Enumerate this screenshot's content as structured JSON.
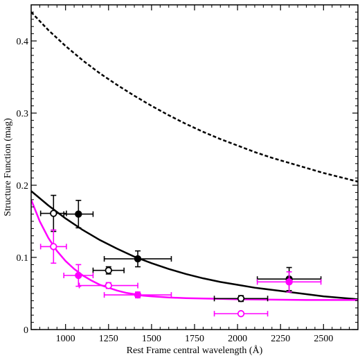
{
  "chart_data": {
    "type": "scatter",
    "title": "",
    "xlabel": "Rest Frame central wavelength (Å)",
    "ylabel": "Structure Function (mag)",
    "xlim": [
      800,
      2700
    ],
    "ylim": [
      0,
      0.45
    ],
    "x_ticks": [
      1000,
      1250,
      1500,
      1750,
      2000,
      2250,
      2500
    ],
    "y_ticks": [
      0,
      0.1,
      0.2,
      0.3,
      0.4
    ],
    "grid": false,
    "legend": "none",
    "series": [
      {
        "kind": "points",
        "color": "#000000",
        "marker": "filled-circle",
        "points": [
          {
            "x": 1075,
            "y": 0.16,
            "xerr": 85,
            "yerr": 0.019
          },
          {
            "x": 1420,
            "y": 0.098,
            "xerr": 195,
            "yerr": 0.011
          },
          {
            "x": 2300,
            "y": 0.07,
            "xerr": 185,
            "yerr": 0.016
          }
        ]
      },
      {
        "kind": "points",
        "color": "#000000",
        "marker": "open-circle",
        "points": [
          {
            "x": 930,
            "y": 0.161,
            "xerr": 75,
            "yerr": 0.025
          },
          {
            "x": 1250,
            "y": 0.082,
            "xerr": 90,
            "yerr": 0.005
          },
          {
            "x": 2020,
            "y": 0.043,
            "xerr": 155,
            "yerr": 0.004
          }
        ]
      },
      {
        "kind": "points",
        "color": "#ff00ff",
        "marker": "filled-circle",
        "points": [
          {
            "x": 1075,
            "y": 0.075,
            "xerr": 85,
            "yerr": 0.015
          },
          {
            "x": 1420,
            "y": 0.048,
            "xerr": 195,
            "yerr": 0.004
          },
          {
            "x": 2300,
            "y": 0.066,
            "xerr": 185,
            "yerr": 0.014
          }
        ]
      },
      {
        "kind": "points",
        "color": "#ff00ff",
        "marker": "open-circle",
        "points": [
          {
            "x": 930,
            "y": 0.115,
            "xerr": 75,
            "yerr": 0.023
          },
          {
            "x": 1250,
            "y": 0.061,
            "xerr": 170,
            "yerr": 0.004
          },
          {
            "x": 2020,
            "y": 0.022,
            "xerr": 155,
            "yerr": 0
          }
        ]
      },
      {
        "kind": "curve",
        "color": "#000000",
        "style": "dashed",
        "x": [
          800,
          900,
          1000,
          1100,
          1200,
          1300,
          1400,
          1500,
          1600,
          1700,
          1800,
          1900,
          2000,
          2100,
          2200,
          2300,
          2400,
          2500,
          2600,
          2700
        ],
        "y": [
          0.44,
          0.415,
          0.393,
          0.373,
          0.355,
          0.339,
          0.324,
          0.31,
          0.297,
          0.285,
          0.274,
          0.264,
          0.255,
          0.246,
          0.238,
          0.231,
          0.224,
          0.217,
          0.211,
          0.205
        ]
      },
      {
        "kind": "curve",
        "color": "#000000",
        "style": "solid",
        "x": [
          800,
          900,
          1000,
          1100,
          1200,
          1300,
          1400,
          1500,
          1600,
          1700,
          1800,
          1900,
          2000,
          2100,
          2200,
          2300,
          2400,
          2500,
          2600,
          2700
        ],
        "y": [
          0.192,
          0.172,
          0.154,
          0.138,
          0.124,
          0.112,
          0.101,
          0.092,
          0.084,
          0.077,
          0.071,
          0.066,
          0.062,
          0.058,
          0.055,
          0.052,
          0.049,
          0.046,
          0.044,
          0.042
        ]
      },
      {
        "kind": "curve",
        "color": "#ff00ff",
        "style": "solid",
        "x": [
          800,
          850,
          900,
          950,
          1000,
          1050,
          1100,
          1150,
          1200,
          1250,
          1300,
          1350,
          1400,
          1450,
          1500,
          1600,
          1700,
          1800,
          1900,
          2000,
          2200,
          2400,
          2700
        ],
        "y": [
          0.18,
          0.15,
          0.127,
          0.109,
          0.095,
          0.084,
          0.075,
          0.068,
          0.062,
          0.058,
          0.054,
          0.051,
          0.049,
          0.047,
          0.046,
          0.0445,
          0.0435,
          0.043,
          0.0425,
          0.042,
          0.0415,
          0.041,
          0.041
        ]
      }
    ]
  }
}
